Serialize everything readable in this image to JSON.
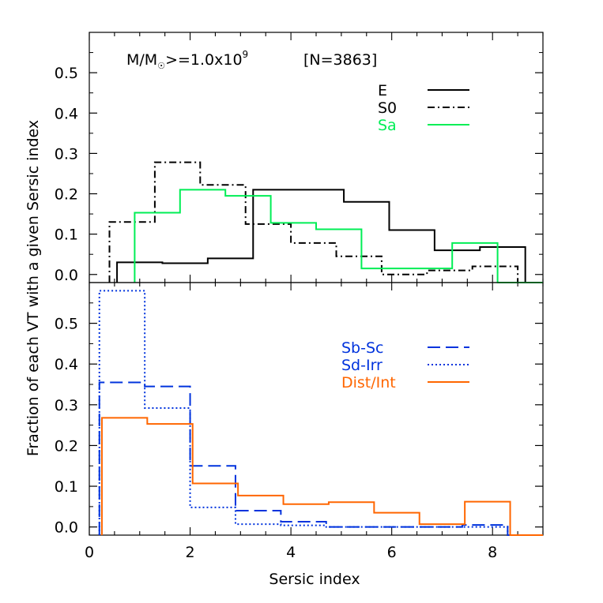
{
  "chart_data": [
    {
      "type": "line",
      "panel": "top",
      "annotation": {
        "mass_prefix": "M/M",
        "mass_mid": ">=1.0x10",
        "mass_exp": "9",
        "count": "[N=3863]"
      },
      "xlim": [
        0,
        9
      ],
      "ylim": [
        -0.02,
        0.6
      ],
      "yticks": [
        "0.0",
        "0.1",
        "0.2",
        "0.3",
        "0.4",
        "0.5"
      ],
      "ytick_values": [
        0.0,
        0.1,
        0.2,
        0.3,
        0.4,
        0.5
      ],
      "grid": false,
      "legend_position": "top-right",
      "series": [
        {
          "name": "E",
          "color": "#000000",
          "style": "solid",
          "bin_edges": [
            0.55,
            1.45,
            2.35,
            3.25,
            4.15,
            5.05,
            5.95,
            6.85,
            7.75,
            8.65
          ],
          "values": [
            0.03,
            0.028,
            0.04,
            0.21,
            0.21,
            0.18,
            0.11,
            0.06,
            0.068
          ]
        },
        {
          "name": "S0",
          "color": "#000000",
          "style": "dashdot",
          "bin_edges": [
            0.4,
            1.3,
            2.2,
            3.1,
            4.0,
            4.9,
            5.8,
            6.7,
            7.6,
            8.5
          ],
          "values": [
            0.13,
            0.278,
            0.222,
            0.125,
            0.078,
            0.045,
            0.0,
            0.01,
            0.02
          ]
        },
        {
          "name": "Sa",
          "color": "#00ee55",
          "style": "solid",
          "bin_edges": [
            0.9,
            1.8,
            2.7,
            3.6,
            4.5,
            5.4,
            6.3,
            7.2,
            8.1
          ],
          "values": [
            0.153,
            0.21,
            0.195,
            0.128,
            0.112,
            0.015,
            0.015,
            0.078
          ]
        }
      ]
    },
    {
      "type": "line",
      "panel": "bottom",
      "xlabel": "Sersic index",
      "ylabel": "Fraction of each VT with a given Sersic index",
      "xlim": [
        0,
        9
      ],
      "ylim": [
        -0.02,
        0.6
      ],
      "xticks": [
        "0",
        "2",
        "4",
        "6",
        "8"
      ],
      "xtick_values": [
        0,
        2,
        4,
        6,
        8
      ],
      "yticks": [
        "0.0",
        "0.1",
        "0.2",
        "0.3",
        "0.4",
        "0.5"
      ],
      "ytick_values": [
        0.0,
        0.1,
        0.2,
        0.3,
        0.4,
        0.5
      ],
      "grid": false,
      "legend_position": "center-right",
      "series": [
        {
          "name": "Sb-Sc",
          "color": "#0033dd",
          "style": "dashed",
          "bin_edges": [
            0.2,
            1.1,
            2.0,
            2.9,
            3.8,
            4.7,
            5.6,
            6.5,
            7.4,
            8.3
          ],
          "values": [
            0.355,
            0.345,
            0.15,
            0.04,
            0.013,
            0.0,
            0.0,
            0.0,
            0.005
          ]
        },
        {
          "name": "Sd-Irr",
          "color": "#0033dd",
          "style": "dotted",
          "bin_edges": [
            0.2,
            1.1,
            2.0,
            2.9,
            3.8,
            4.7,
            5.6,
            6.5,
            7.4,
            8.3
          ],
          "values": [
            0.58,
            0.292,
            0.048,
            0.007,
            0.004,
            0.0,
            0.0,
            0.0,
            0.0
          ]
        },
        {
          "name": "Dist/Int",
          "color": "#ff6600",
          "style": "solid",
          "bin_edges": [
            0.25,
            1.15,
            2.05,
            2.95,
            3.85,
            4.75,
            5.65,
            6.55,
            7.45,
            8.35
          ],
          "values": [
            0.268,
            0.253,
            0.107,
            0.077,
            0.056,
            0.061,
            0.035,
            0.007,
            0.062
          ]
        }
      ]
    }
  ]
}
